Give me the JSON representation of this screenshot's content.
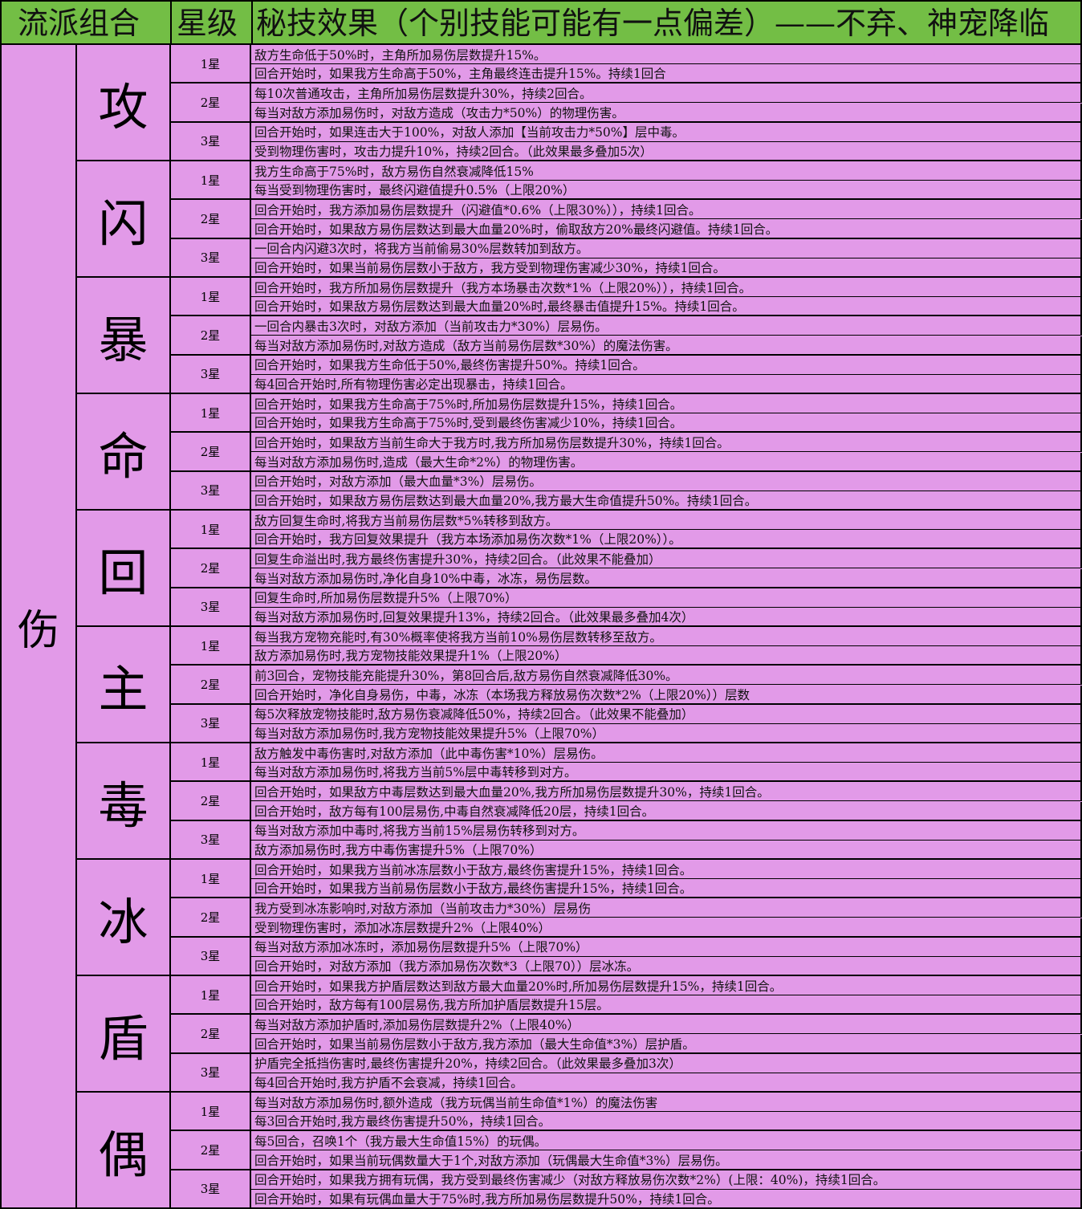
{
  "header": {
    "col_school": "流派组合",
    "col_star": "星级",
    "col_effect": "秘技效果（个别技能可能有一点偏差）——不弃、神宠降临"
  },
  "category": "伤",
  "colors": {
    "header_bg": "#73BE45",
    "cell_bg": "#E29AE8"
  },
  "groups": [
    {
      "name": "攻",
      "stars": [
        {
          "label": "1星",
          "lines": [
            "敌方生命低于50%时，主角所加易伤层数提升15%。",
            "回合开始时，如果我方生命高于50%，主角最终连击提升15%。持续1回合"
          ]
        },
        {
          "label": "2星",
          "lines": [
            "每10次普通攻击，主角所加易伤层数提升30%，持续2回合。",
            "每当对敌方添加易伤时，对敌方造成（攻击力*50%）的物理伤害。"
          ]
        },
        {
          "label": "3星",
          "lines": [
            "回合开始时，如果连击大于100%，对敌人添加【当前攻击力*50%】层中毒。",
            "受到物理伤害时，攻击力提升10%，持续2回合。（此效果最多叠加5次）"
          ]
        }
      ]
    },
    {
      "name": "闪",
      "stars": [
        {
          "label": "1星",
          "lines": [
            "我方生命高于75%时，敌方易伤自然衰减降低15%",
            "每当受到物理伤害时，最终闪避值提升0.5%（上限20%）"
          ]
        },
        {
          "label": "2星",
          "lines": [
            "回合开始时，我方添加易伤层数提升（闪避值*0.6%（上限30%）），持续1回合。",
            "回合开始时，如果敌方易伤层数达到最大血量20%时，偷取敌方20%最终闪避值。持续1回合。"
          ]
        },
        {
          "label": "3星",
          "lines": [
            "一回合内闪避3次时，将我方当前偷易30%层数转加到敌方。",
            "回合开始时，如果当前易伤层数小于敌方，我方受到物理伤害减少30%，持续1回合。"
          ]
        }
      ]
    },
    {
      "name": "暴",
      "stars": [
        {
          "label": "1星",
          "lines": [
            "回合开始时，我方所加易伤层数提升（我方本场暴击次数*1%（上限20%）），持续1回合。",
            "回合开始时，如果敌方易伤层数达到最大血量20%时,最终暴击值提升15%。持续1回合。"
          ]
        },
        {
          "label": "2星",
          "lines": [
            "一回合内暴击3次时，对敌方添加（当前攻击力*30%）层易伤。",
            "每当对敌方添加易伤时,对敌方造成（敌方当前易伤层数*30%）的魔法伤害。"
          ]
        },
        {
          "label": "3星",
          "lines": [
            "回合开始时，如果我方生命低于50%,最终伤害提升50%。持续1回合。",
            "每4回合开始时,所有物理伤害必定出现暴击，持续1回合。"
          ]
        }
      ]
    },
    {
      "name": "命",
      "stars": [
        {
          "label": "1星",
          "lines": [
            "回合开始时，如果我方生命高于75%时,所加易伤层数提升15%，持续1回合。",
            "回合开始时，如果我方生命高于75%时,受到最终伤害减少10%，持续1回合。"
          ]
        },
        {
          "label": "2星",
          "lines": [
            "回合开始时，如果敌方当前生命大于我方时,我方所加易伤层数提升30%，持续1回合。",
            "每当对敌方添加易伤时,造成（最大生命*2%）的物理伤害。"
          ]
        },
        {
          "label": "3星",
          "lines": [
            "回合开始时，对敌方添加（最大血量*3%）层易伤。",
            "回合开始时，如果敌方易伤层数达到最大血量20%,我方最大生命值提升50%。持续1回合。"
          ]
        }
      ]
    },
    {
      "name": "回",
      "stars": [
        {
          "label": "1星",
          "lines": [
            "敌方回复生命时,将我方当前易伤层数*5%转移到敌方。",
            "回合开始时，我方回复效果提升（我方本场添加易伤次数*1%（上限20%））。"
          ]
        },
        {
          "label": "2星",
          "lines": [
            "回复生命溢出时,我方最终伤害提升30%，持续2回合。（此效果不能叠加）",
            "每当对敌方添加易伤时,净化自身10%中毒，冰冻，易伤层数。"
          ]
        },
        {
          "label": "3星",
          "lines": [
            "回复生命时,所加易伤层数提升5%（上限70%）",
            "每当对敌方添加易伤时,回复效果提升13%，持续2回合。（此效果最多叠加4次）"
          ]
        }
      ]
    },
    {
      "name": "主",
      "stars": [
        {
          "label": "1星",
          "lines": [
            "每当我方宠物充能时,有30%概率使将我方当前10%易伤层数转移至敌方。",
            "敌方添加易伤时,我方宠物技能效果提升1%（上限20%）"
          ]
        },
        {
          "label": "2星",
          "lines": [
            "前3回合，宠物技能充能提升30%，第8回合后,敌方易伤自然衰减降低30%。",
            "回合开始时，净化自身易伤，中毒，冰冻（本场我方释放易伤次数*2%（上限20%））层数"
          ]
        },
        {
          "label": "3星",
          "lines": [
            "每5次释放宠物技能时,敌方易伤衰减降低50%，持续2回合。（此效果不能叠加）",
            "每当对敌方添加易伤时,我方宠物技能效果提升5%（上限70%）"
          ]
        }
      ]
    },
    {
      "name": "毒",
      "stars": [
        {
          "label": "1星",
          "lines": [
            "敌方触发中毒伤害时,对敌方添加（此中毒伤害*10%）层易伤。",
            "每当对敌方添加易伤时,将我方当前5%层中毒转移到对方。"
          ]
        },
        {
          "label": "2星",
          "lines": [
            "回合开始时，如果敌方中毒层数达到最大血量20%,我方所加易伤层数提升30%，持续1回合。",
            "回合开始时，敌方每有100层易伤,中毒自然衰减降低20层，持续1回合。"
          ]
        },
        {
          "label": "3星",
          "lines": [
            "每当对敌方添加中毒时,将我方当前15%层易伤转移到对方。",
            "敌方添加易伤时,我方中毒伤害提升5%（上限70%）"
          ]
        }
      ]
    },
    {
      "name": "冰",
      "stars": [
        {
          "label": "1星",
          "lines": [
            "回合开始时，如果我方当前冰冻层数小于敌方,最终伤害提升15%，持续1回合。",
            "回合开始时，如果我方当前易伤层数小于敌方,最终伤害提升15%，持续1回合。"
          ]
        },
        {
          "label": "2星",
          "lines": [
            "我方受到冰冻影响时,对敌方添加（当前攻击力*30%）层易伤",
            "受到物理伤害时，添加冰冻层数提升2%（上限40%）"
          ]
        },
        {
          "label": "3星",
          "lines": [
            "每当对敌方添加冰冻时，添加易伤层数提升5%（上限70%）",
            "回合开始时，对敌方添加（我方添加易伤次数*3（上限70））层冰冻。"
          ]
        }
      ]
    },
    {
      "name": "盾",
      "stars": [
        {
          "label": "1星",
          "lines": [
            "回合开始时，如果我方护盾层数达到敌方最大血量20%时,所加易伤层数提升15%，持续1回合。",
            "回合开始时，敌方每有100层易伤,我方所加护盾层数提升15层。"
          ]
        },
        {
          "label": "2星",
          "lines": [
            "每当对敌方添加护盾时,添加易伤层数提升2%（上限40%）",
            "回合开始时，如果当前易伤层数小于敌方,我方添加（最大生命值*3%）层护盾。"
          ]
        },
        {
          "label": "3星",
          "lines": [
            "护盾完全抵挡伤害时,最终伤害提升20%，持续2回合。（此效果最多叠加3次）",
            "每4回合开始时,我方护盾不会衰减，持续1回合。"
          ]
        }
      ]
    },
    {
      "name": "偶",
      "stars": [
        {
          "label": "1星",
          "lines": [
            "每当对敌方添加易伤时,额外造成（我方玩偶当前生命值*1%）的魔法伤害",
            "每3回合开始时,我方最终伤害提升50%，持续1回合。"
          ]
        },
        {
          "label": "2星",
          "lines": [
            "每5回合，召唤1个（我方最大生命值15%）的玩偶。",
            "回合开始时，如果当前玩偶数量大于1个,对敌方添加（玩偶最大生命值*3%）层易伤。"
          ]
        },
        {
          "label": "3星",
          "lines": [
            "回合开始时，如果我方拥有玩偶，我方受到最终伤害减少（对敌方释放易伤次数*2%）(上限：40%)，持续1回合。",
            "回合开始时，如果有玩偶血量大于75%时,我方所加易伤层数提升50%，持续1回合。"
          ]
        }
      ]
    }
  ]
}
